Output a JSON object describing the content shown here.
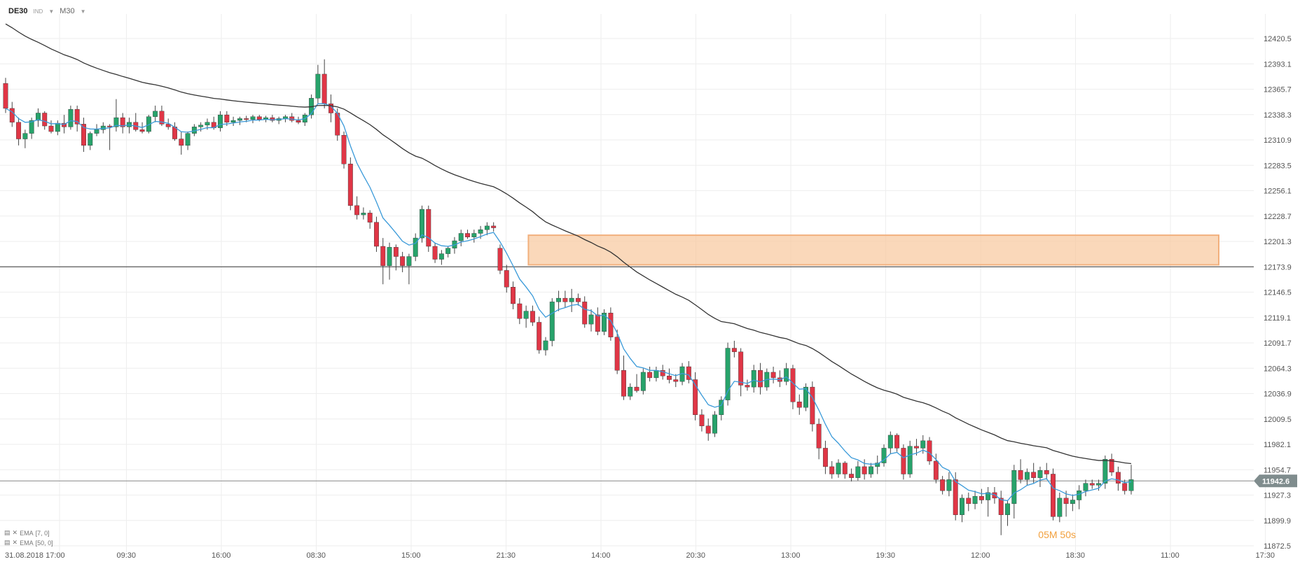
{
  "header": {
    "symbol": "DE30",
    "symbol_type": "IND",
    "timeframe": "M30"
  },
  "indicators": [
    {
      "label": "EMA",
      "params": "[7, 0]",
      "color": "#3a9ad9"
    },
    {
      "label": "EMA",
      "params": "[50, 0]",
      "color": "#333333"
    }
  ],
  "timer": {
    "minutes": "05",
    "unit_m": "M",
    "seconds": "50",
    "unit_s": "s"
  },
  "colors": {
    "up": "#27a36b",
    "down": "#e03646",
    "zone": "#f8c79c",
    "zone_border": "#f2b07d",
    "grid": "#eeeeee"
  },
  "chart_data": {
    "type": "candlestick",
    "ylim": [
      11872.5,
      12420.5
    ],
    "y_ticks": [
      "12420.5",
      "12393.1",
      "12365.7",
      "12338.3",
      "12310.9",
      "12283.5",
      "12256.1",
      "12228.7",
      "12201.3",
      "12173.9",
      "12146.5",
      "12119.1",
      "12091.7",
      "12064.3",
      "12036.9",
      "12009.5",
      "11982.1",
      "11954.7",
      "11927.3",
      "11899.9",
      "11872.5"
    ],
    "x_ticks": [
      "31.08.2018  17:00",
      "09:30",
      "16:00",
      "08:30",
      "15:00",
      "21:30",
      "14:00",
      "20:30",
      "13:00",
      "19:30",
      "12:00",
      "18:30",
      "11:00",
      "17:30"
    ],
    "current_price": "11942.6",
    "horizontal_line": 12173.9,
    "zone": {
      "from_candle": 81,
      "to_candle": 208,
      "low": 12176,
      "high": 12208
    },
    "candles": [
      [
        12372,
        12378,
        12340,
        12345
      ],
      [
        12345,
        12352,
        12325,
        12330
      ],
      [
        12330,
        12335,
        12305,
        12312
      ],
      [
        12312,
        12322,
        12302,
        12318
      ],
      [
        12318,
        12335,
        12312,
        12332
      ],
      [
        12332,
        12345,
        12325,
        12340
      ],
      [
        12340,
        12342,
        12322,
        12326
      ],
      [
        12326,
        12332,
        12318,
        12320
      ],
      [
        12320,
        12332,
        12316,
        12329
      ],
      [
        12329,
        12338,
        12318,
        12325
      ],
      [
        12325,
        12348,
        12322,
        12344
      ],
      [
        12344,
        12348,
        12320,
        12328
      ],
      [
        12328,
        12335,
        12298,
        12305
      ],
      [
        12305,
        12320,
        12300,
        12318
      ],
      [
        12318,
        12328,
        12315,
        12322
      ],
      [
        12322,
        12330,
        12318,
        12326
      ],
      [
        12326,
        12328,
        12300,
        12325
      ],
      [
        12325,
        12355,
        12320,
        12335
      ],
      [
        12335,
        12340,
        12318,
        12325
      ],
      [
        12325,
        12335,
        12318,
        12330
      ],
      [
        12330,
        12340,
        12320,
        12322
      ],
      [
        12322,
        12330,
        12318,
        12320
      ],
      [
        12320,
        12338,
        12318,
        12336
      ],
      [
        12336,
        12348,
        12330,
        12342
      ],
      [
        12342,
        12348,
        12326,
        12328
      ],
      [
        12328,
        12334,
        12322,
        12325
      ],
      [
        12325,
        12330,
        12310,
        12312
      ],
      [
        12312,
        12320,
        12295,
        12305
      ],
      [
        12305,
        12320,
        12300,
        12318
      ],
      [
        12318,
        12328,
        12315,
        12325
      ],
      [
        12325,
        12330,
        12320,
        12327
      ],
      [
        12327,
        12334,
        12322,
        12330
      ],
      [
        12330,
        12336,
        12322,
        12324
      ],
      [
        12324,
        12342,
        12320,
        12338
      ],
      [
        12338,
        12342,
        12326,
        12330
      ],
      [
        12330,
        12336,
        12326,
        12332
      ],
      [
        12332,
        12336,
        12327,
        12334
      ],
      [
        12334,
        12337,
        12330,
        12333
      ],
      [
        12333,
        12338,
        12329,
        12336
      ],
      [
        12336,
        12338,
        12331,
        12333
      ],
      [
        12333,
        12337,
        12330,
        12335
      ],
      [
        12335,
        12338,
        12330,
        12332
      ],
      [
        12332,
        12336,
        12328,
        12334
      ],
      [
        12334,
        12338,
        12330,
        12336
      ],
      [
        12336,
        12340,
        12330,
        12332
      ],
      [
        12332,
        12336,
        12328,
        12330
      ],
      [
        12330,
        12340,
        12326,
        12338
      ],
      [
        12338,
        12360,
        12334,
        12356
      ],
      [
        12356,
        12392,
        12350,
        12382
      ],
      [
        12382,
        12398,
        12345,
        12350
      ],
      [
        12350,
        12360,
        12330,
        12340
      ],
      [
        12340,
        12345,
        12310,
        12316
      ],
      [
        12316,
        12320,
        12280,
        12285
      ],
      [
        12285,
        12292,
        12235,
        12240
      ],
      [
        12240,
        12250,
        12225,
        12230
      ],
      [
        12230,
        12238,
        12225,
        12232
      ],
      [
        12232,
        12235,
        12215,
        12222
      ],
      [
        12222,
        12228,
        12190,
        12196
      ],
      [
        12196,
        12205,
        12155,
        12175
      ],
      [
        12175,
        12200,
        12160,
        12195
      ],
      [
        12195,
        12198,
        12170,
        12185
      ],
      [
        12185,
        12190,
        12168,
        12175
      ],
      [
        12175,
        12188,
        12155,
        12185
      ],
      [
        12185,
        12210,
        12180,
        12205
      ],
      [
        12205,
        12240,
        12200,
        12236
      ],
      [
        12236,
        12240,
        12190,
        12196
      ],
      [
        12196,
        12200,
        12178,
        12182
      ],
      [
        12182,
        12192,
        12176,
        12188
      ],
      [
        12188,
        12196,
        12184,
        12194
      ],
      [
        12194,
        12206,
        12188,
        12202
      ],
      [
        12202,
        12214,
        12196,
        12210
      ],
      [
        12210,
        12214,
        12204,
        12206
      ],
      [
        12206,
        12214,
        12200,
        12210
      ],
      [
        12210,
        12218,
        12204,
        12214
      ],
      [
        12214,
        12222,
        12208,
        12218
      ],
      [
        12218,
        12222,
        12212,
        12216
      ],
      [
        12194,
        12198,
        12166,
        12170
      ],
      [
        12170,
        12176,
        12146,
        12152
      ],
      [
        12152,
        12158,
        12128,
        12134
      ],
      [
        12134,
        12140,
        12112,
        12118
      ],
      [
        12118,
        12132,
        12108,
        12126
      ],
      [
        12126,
        12132,
        12110,
        12114
      ],
      [
        12114,
        12120,
        12080,
        12084
      ],
      [
        12084,
        12098,
        12078,
        12094
      ],
      [
        12094,
        12140,
        12088,
        12136
      ],
      [
        12136,
        12148,
        12126,
        12140
      ],
      [
        12140,
        12148,
        12130,
        12136
      ],
      [
        12136,
        12150,
        12125,
        12140
      ],
      [
        12140,
        12145,
        12132,
        12136
      ],
      [
        12136,
        12142,
        12108,
        12112
      ],
      [
        12112,
        12128,
        12104,
        12122
      ],
      [
        12122,
        12130,
        12100,
        12104
      ],
      [
        12104,
        12128,
        12100,
        12124
      ],
      [
        12124,
        12130,
        12094,
        12098
      ],
      [
        12098,
        12106,
        12058,
        12062
      ],
      [
        12062,
        12078,
        12030,
        12034
      ],
      [
        12034,
        12048,
        12030,
        12044
      ],
      [
        12044,
        12058,
        12038,
        12040
      ],
      [
        12040,
        12064,
        12036,
        12060
      ],
      [
        12060,
        12066,
        12050,
        12054
      ],
      [
        12054,
        12066,
        12050,
        12062
      ],
      [
        12062,
        12068,
        12052,
        12056
      ],
      [
        12056,
        12064,
        12048,
        12052
      ],
      [
        12052,
        12058,
        12044,
        12050
      ],
      [
        12050,
        12070,
        12046,
        12066
      ],
      [
        12066,
        12072,
        12048,
        12052
      ],
      [
        12052,
        12060,
        12008,
        12014
      ],
      [
        12014,
        12020,
        11996,
        12002
      ],
      [
        12002,
        12010,
        11986,
        11994
      ],
      [
        11994,
        12018,
        11990,
        12014
      ],
      [
        12014,
        12034,
        12008,
        12030
      ],
      [
        12030,
        12092,
        12024,
        12086
      ],
      [
        12086,
        12094,
        12076,
        12082
      ],
      [
        12082,
        12086,
        12034,
        12046
      ],
      [
        12046,
        12052,
        12040,
        12044
      ],
      [
        12044,
        12068,
        12038,
        12062
      ],
      [
        12062,
        12070,
        12036,
        12044
      ],
      [
        12044,
        12064,
        12040,
        12060
      ],
      [
        12060,
        12066,
        12048,
        12054
      ],
      [
        12054,
        12062,
        12044,
        12050
      ],
      [
        12050,
        12070,
        12046,
        12064
      ],
      [
        12064,
        12068,
        12020,
        12028
      ],
      [
        12028,
        12036,
        12014,
        12022
      ],
      [
        12022,
        12048,
        12018,
        12044
      ],
      [
        12044,
        12050,
        11996,
        12004
      ],
      [
        12004,
        12010,
        11966,
        11978
      ],
      [
        11978,
        11986,
        11950,
        11958
      ],
      [
        11958,
        11964,
        11945,
        11950
      ],
      [
        11950,
        11966,
        11946,
        11962
      ],
      [
        11962,
        11964,
        11945,
        11950
      ],
      [
        11950,
        11956,
        11942,
        11946
      ],
      [
        11946,
        11964,
        11943,
        11958
      ],
      [
        11958,
        11966,
        11944,
        11950
      ],
      [
        11950,
        11962,
        11946,
        11958
      ],
      [
        11958,
        11970,
        11950,
        11962
      ],
      [
        11962,
        11982,
        11958,
        11978
      ],
      [
        11978,
        11996,
        11972,
        11992
      ],
      [
        11992,
        11994,
        11974,
        11978
      ],
      [
        11978,
        11982,
        11944,
        11950
      ],
      [
        11950,
        11986,
        11946,
        11980
      ],
      [
        11980,
        11988,
        11970,
        11978
      ],
      [
        11978,
        11992,
        11972,
        11986
      ],
      [
        11986,
        11990,
        11960,
        11964
      ],
      [
        11964,
        11972,
        11940,
        11944
      ],
      [
        11944,
        11948,
        11928,
        11932
      ],
      [
        11932,
        11952,
        11926,
        11944
      ],
      [
        11944,
        11952,
        11900,
        11906
      ],
      [
        11906,
        11928,
        11898,
        11924
      ],
      [
        11924,
        11930,
        11910,
        11918
      ],
      [
        11918,
        11932,
        11912,
        11926
      ],
      [
        11926,
        11934,
        11918,
        11922
      ],
      [
        11922,
        11936,
        11904,
        11930
      ],
      [
        11930,
        11936,
        11918,
        11924
      ],
      [
        11924,
        11932,
        11884,
        11906
      ],
      [
        11906,
        11922,
        11894,
        11918
      ],
      [
        11918,
        11960,
        11902,
        11954
      ],
      [
        11954,
        11966,
        11940,
        11944
      ],
      [
        11944,
        11956,
        11938,
        11952
      ],
      [
        11952,
        11962,
        11940,
        11946
      ],
      [
        11946,
        11958,
        11936,
        11954
      ],
      [
        11954,
        11962,
        11944,
        11950
      ],
      [
        11950,
        11956,
        11900,
        11904
      ],
      [
        11904,
        11930,
        11898,
        11924
      ],
      [
        11924,
        11932,
        11904,
        11918
      ],
      [
        11918,
        11928,
        11910,
        11922
      ],
      [
        11922,
        11938,
        11912,
        11932
      ],
      [
        11932,
        11944,
        11926,
        11940
      ],
      [
        11940,
        11944,
        11934,
        11938
      ],
      [
        11938,
        11944,
        11932,
        11940
      ],
      [
        11940,
        11970,
        11934,
        11966
      ],
      [
        11966,
        11972,
        11948,
        11952
      ],
      [
        11952,
        11958,
        11932,
        11940
      ],
      [
        11940,
        11944,
        11928,
        11932
      ],
      [
        11932,
        11960,
        11928,
        11944
      ]
    ],
    "x_positions_note": "candle index maps to x; gaps between sessions follow the time axis"
  }
}
